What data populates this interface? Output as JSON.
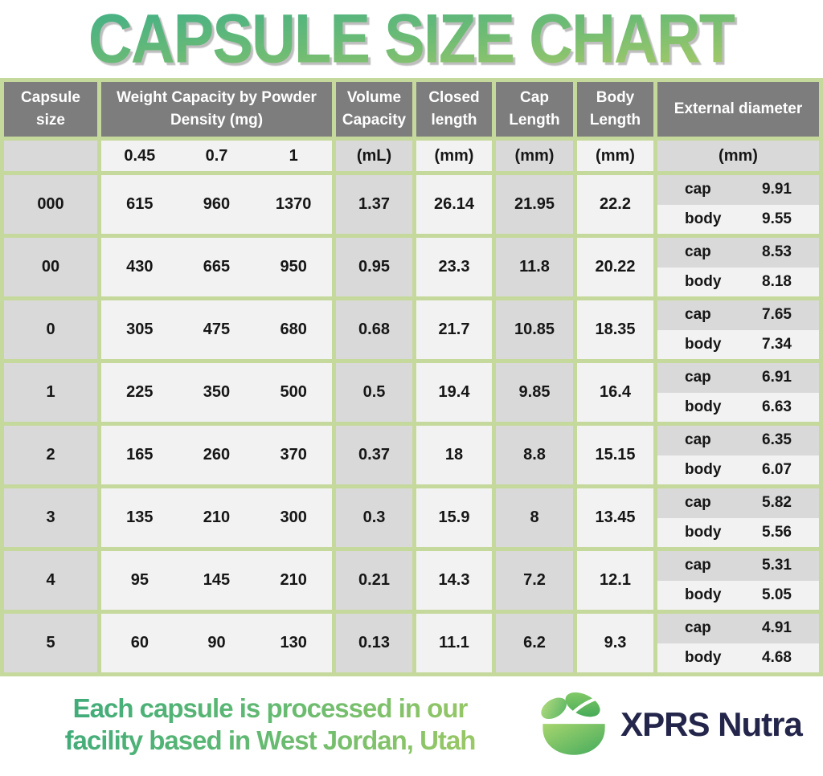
{
  "title": "CAPSULE SIZE CHART",
  "colors": {
    "green_border": "#c6d99c",
    "header_gray": "#7d7d7d",
    "cell_gray": "#d9d9d9",
    "cell_light": "#f2f2f2",
    "title_gradient_top": "#44b085",
    "title_gradient_bottom": "#aacb66",
    "brand_navy": "#23254a"
  },
  "table": {
    "headers": {
      "capsule_size": "Capsule size",
      "weight_capacity": "Weight Capacity by Powder Density (mg)",
      "volume_capacity": "Volume Capacity",
      "closed_length": "Closed length",
      "cap_length": "Cap Length",
      "body_length": "Body Length",
      "external_diameter": "External diameter"
    },
    "units": {
      "densities": [
        "0.45",
        "0.7",
        "1"
      ],
      "volume": "(mL)",
      "closed": "(mm)",
      "cap": "(mm)",
      "body": "(mm)",
      "external": "(mm)"
    },
    "ext_labels": {
      "cap": "cap",
      "body": "body"
    },
    "rows": [
      {
        "size": "000",
        "weights": [
          "615",
          "960",
          "1370"
        ],
        "volume": "1.37",
        "closed": "26.14",
        "cap_length": "21.95",
        "body_length": "22.2",
        "ext_cap": "9.91",
        "ext_body": "9.55"
      },
      {
        "size": "00",
        "weights": [
          "430",
          "665",
          "950"
        ],
        "volume": "0.95",
        "closed": "23.3",
        "cap_length": "11.8",
        "body_length": "20.22",
        "ext_cap": "8.53",
        "ext_body": "8.18"
      },
      {
        "size": "0",
        "weights": [
          "305",
          "475",
          "680"
        ],
        "volume": "0.68",
        "closed": "21.7",
        "cap_length": "10.85",
        "body_length": "18.35",
        "ext_cap": "7.65",
        "ext_body": "7.34"
      },
      {
        "size": "1",
        "weights": [
          "225",
          "350",
          "500"
        ],
        "volume": "0.5",
        "closed": "19.4",
        "cap_length": "9.85",
        "body_length": "16.4",
        "ext_cap": "6.91",
        "ext_body": "6.63"
      },
      {
        "size": "2",
        "weights": [
          "165",
          "260",
          "370"
        ],
        "volume": "0.37",
        "closed": "18",
        "cap_length": "8.8",
        "body_length": "15.15",
        "ext_cap": "6.35",
        "ext_body": "6.07"
      },
      {
        "size": "3",
        "weights": [
          "135",
          "210",
          "300"
        ],
        "volume": "0.3",
        "closed": "15.9",
        "cap_length": "8",
        "body_length": "13.45",
        "ext_cap": "5.82",
        "ext_body": "5.56"
      },
      {
        "size": "4",
        "weights": [
          "95",
          "145",
          "210"
        ],
        "volume": "0.21",
        "closed": "14.3",
        "cap_length": "7.2",
        "body_length": "12.1",
        "ext_cap": "5.31",
        "ext_body": "5.05"
      },
      {
        "size": "5",
        "weights": [
          "60",
          "90",
          "130"
        ],
        "volume": "0.13",
        "closed": "11.1",
        "cap_length": "6.2",
        "body_length": "9.3",
        "ext_cap": "4.91",
        "ext_body": "4.68"
      }
    ]
  },
  "footer": {
    "note_line1": "Each capsule is processed in our",
    "note_line2": "facility based in West Jordan, Utah",
    "brand": "XPRS Nutra"
  },
  "chart_data": {
    "type": "table",
    "title": "CAPSULE SIZE CHART",
    "columns": [
      "Capsule size",
      "Weight Capacity (mg) at density 0.45",
      "Weight Capacity (mg) at density 0.7",
      "Weight Capacity (mg) at density 1",
      "Volume Capacity (mL)",
      "Closed length (mm)",
      "Cap Length (mm)",
      "Body Length (mm)",
      "External diameter cap (mm)",
      "External diameter body (mm)"
    ],
    "rows": [
      [
        "000",
        615,
        960,
        1370,
        1.37,
        26.14,
        21.95,
        22.2,
        9.91,
        9.55
      ],
      [
        "00",
        430,
        665,
        950,
        0.95,
        23.3,
        11.8,
        20.22,
        8.53,
        8.18
      ],
      [
        "0",
        305,
        475,
        680,
        0.68,
        21.7,
        10.85,
        18.35,
        7.65,
        7.34
      ],
      [
        "1",
        225,
        350,
        500,
        0.5,
        19.4,
        9.85,
        16.4,
        6.91,
        6.63
      ],
      [
        "2",
        165,
        260,
        370,
        0.37,
        18,
        8.8,
        15.15,
        6.35,
        6.07
      ],
      [
        "3",
        135,
        210,
        300,
        0.3,
        15.9,
        8,
        13.45,
        5.82,
        5.56
      ],
      [
        "4",
        95,
        145,
        210,
        0.21,
        14.3,
        7.2,
        12.1,
        5.31,
        5.05
      ],
      [
        "5",
        60,
        90,
        130,
        0.13,
        11.1,
        6.2,
        9.3,
        4.91,
        4.68
      ]
    ]
  }
}
